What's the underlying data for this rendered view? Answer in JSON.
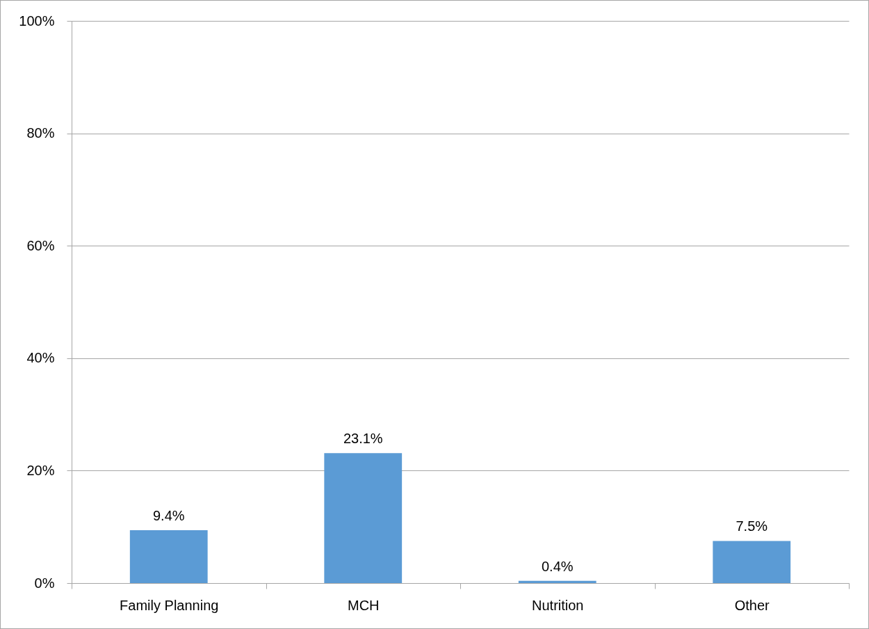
{
  "chart_data": {
    "type": "bar",
    "categories": [
      "Family Planning",
      "MCH",
      "Nutrition",
      "Other"
    ],
    "values": [
      9.4,
      23.1,
      0.4,
      7.5
    ],
    "value_labels": [
      "9.4%",
      "23.1%",
      "0.4%",
      "7.5%"
    ],
    "color": "#5b9bd5",
    "ylim": [
      0,
      100
    ],
    "yticks": [
      {
        "value": 0,
        "label": "0%"
      },
      {
        "value": 20,
        "label": "20%"
      },
      {
        "value": 40,
        "label": "40%"
      },
      {
        "value": 60,
        "label": "60%"
      },
      {
        "value": 80,
        "label": "80%"
      },
      {
        "value": 100,
        "label": "100%"
      }
    ],
    "grid": "y"
  }
}
